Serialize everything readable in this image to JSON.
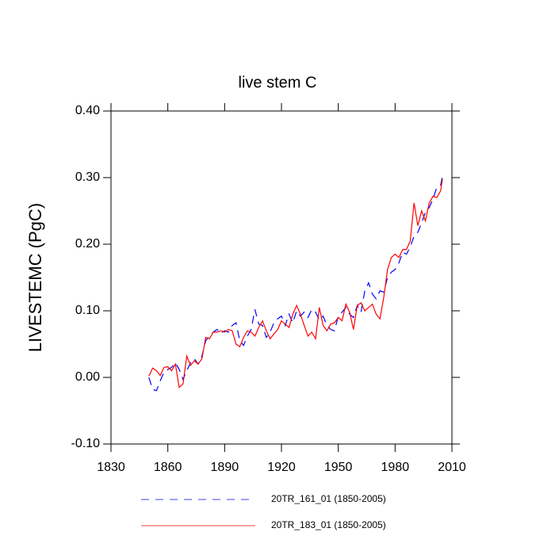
{
  "chart_data": {
    "type": "line",
    "title": "live stem C",
    "ylabel": "LIVESTEMC  (PgC)",
    "x": [
      1850,
      1852,
      1854,
      1856,
      1858,
      1860,
      1862,
      1864,
      1866,
      1868,
      1870,
      1872,
      1874,
      1876,
      1878,
      1880,
      1882,
      1884,
      1886,
      1888,
      1890,
      1892,
      1894,
      1896,
      1898,
      1900,
      1902,
      1904,
      1906,
      1908,
      1910,
      1912,
      1914,
      1916,
      1918,
      1920,
      1922,
      1924,
      1926,
      1928,
      1930,
      1932,
      1934,
      1936,
      1938,
      1940,
      1942,
      1944,
      1946,
      1948,
      1950,
      1952,
      1954,
      1956,
      1958,
      1960,
      1962,
      1964,
      1966,
      1968,
      1970,
      1972,
      1974,
      1976,
      1978,
      1980,
      1982,
      1984,
      1986,
      1988,
      1990,
      1992,
      1994,
      1996,
      1998,
      2000,
      2002,
      2004,
      2005
    ],
    "series": [
      {
        "name": "20TR_161_01 (1850-2005)",
        "color": "#0000ff",
        "dashed": true,
        "values": [
          0.0,
          -0.018,
          -0.02,
          -0.005,
          0.008,
          0.012,
          0.015,
          0.022,
          0.012,
          -0.003,
          0.01,
          0.022,
          0.028,
          0.02,
          0.032,
          0.055,
          0.062,
          0.068,
          0.072,
          0.066,
          0.07,
          0.068,
          0.078,
          0.082,
          0.055,
          0.048,
          0.062,
          0.072,
          0.102,
          0.08,
          0.078,
          0.06,
          0.068,
          0.082,
          0.088,
          0.092,
          0.078,
          0.095,
          0.082,
          0.1,
          0.092,
          0.098,
          0.09,
          0.102,
          0.098,
          0.086,
          0.092,
          0.078,
          0.072,
          0.07,
          0.092,
          0.098,
          0.105,
          0.095,
          0.09,
          0.108,
          0.098,
          0.13,
          0.142,
          0.125,
          0.118,
          0.13,
          0.128,
          0.15,
          0.158,
          0.162,
          0.172,
          0.188,
          0.185,
          0.196,
          0.212,
          0.218,
          0.232,
          0.248,
          0.255,
          0.268,
          0.285,
          0.288,
          0.302
        ]
      },
      {
        "name": "20TR_183_01 (1850-2005)",
        "color": "#ff0000",
        "dashed": false,
        "values": [
          0.002,
          0.014,
          0.01,
          0.003,
          0.015,
          0.016,
          0.01,
          0.02,
          -0.015,
          -0.01,
          0.032,
          0.018,
          0.025,
          0.02,
          0.028,
          0.06,
          0.058,
          0.068,
          0.068,
          0.07,
          0.068,
          0.072,
          0.07,
          0.05,
          0.046,
          0.06,
          0.07,
          0.068,
          0.062,
          0.075,
          0.085,
          0.07,
          0.058,
          0.065,
          0.072,
          0.085,
          0.08,
          0.075,
          0.095,
          0.108,
          0.095,
          0.078,
          0.062,
          0.068,
          0.058,
          0.105,
          0.078,
          0.07,
          0.08,
          0.082,
          0.09,
          0.085,
          0.11,
          0.098,
          0.072,
          0.108,
          0.112,
          0.1,
          0.105,
          0.11,
          0.095,
          0.088,
          0.12,
          0.162,
          0.18,
          0.185,
          0.18,
          0.192,
          0.192,
          0.205,
          0.262,
          0.228,
          0.25,
          0.235,
          0.262,
          0.272,
          0.27,
          0.28,
          0.298
        ]
      }
    ],
    "xlim": [
      1830,
      2010
    ],
    "xticks": [
      1830,
      1860,
      1890,
      1920,
      1950,
      1980,
      2010
    ],
    "ylim": [
      -0.1,
      0.4
    ],
    "yticks": [
      {
        "value": -0.1,
        "label": "-0.10"
      },
      {
        "value": 0,
        "label": "0.00"
      },
      {
        "value": 0.1,
        "label": "0.10"
      },
      {
        "value": 0.2,
        "label": "0.20"
      },
      {
        "value": 0.3,
        "label": "0.30"
      },
      {
        "value": 0.4,
        "label": "0.40"
      }
    ]
  }
}
